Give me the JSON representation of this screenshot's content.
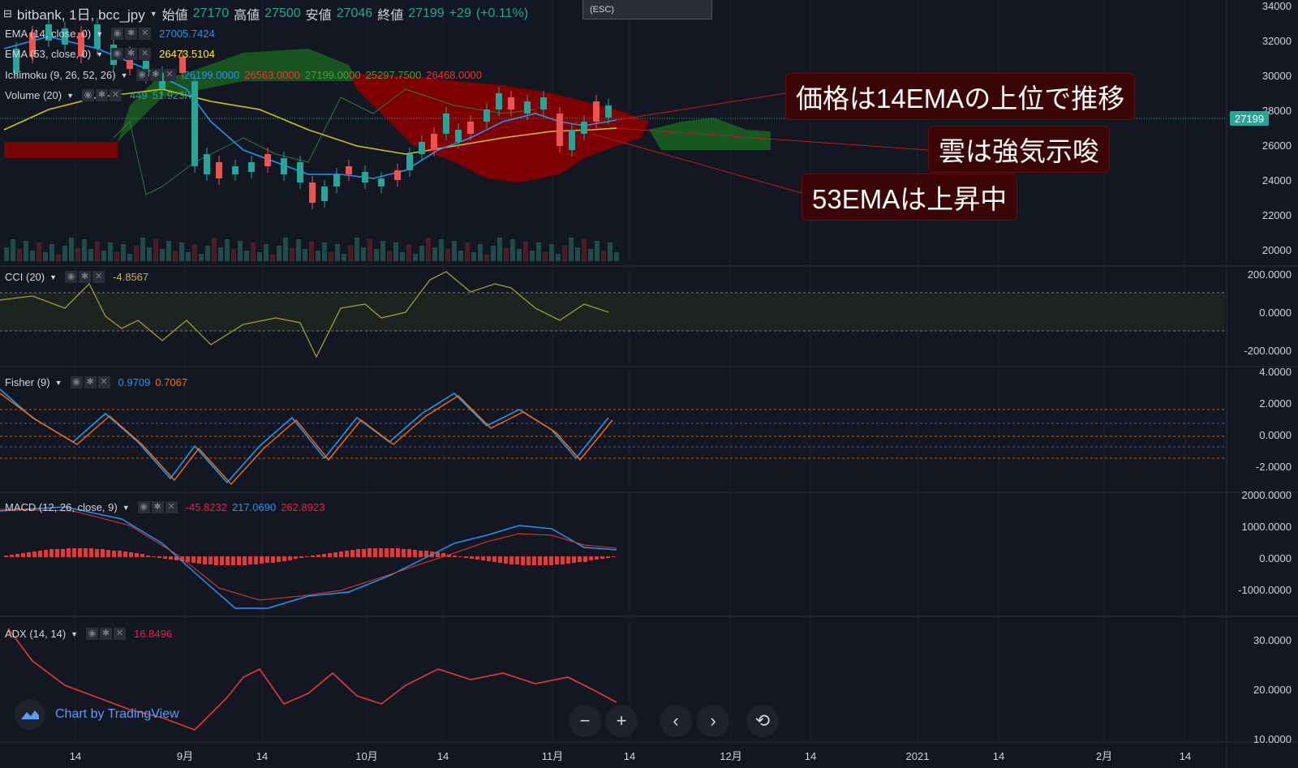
{
  "header": {
    "symbol": "bitbank, 1日, bcc_jpy",
    "open_label": "始値",
    "open": "27170",
    "high_label": "高値",
    "high": "27500",
    "low_label": "安値",
    "low": "27046",
    "close_label": "終値",
    "close": "27199",
    "change": "+29",
    "change_pct": "(+0.11%)",
    "esc_hint": "(ESC)"
  },
  "indicators": {
    "ema14": {
      "name": "EMA (14, close, 0)",
      "value": "27005.7424",
      "color": "#2196f3"
    },
    "ema53": {
      "name": "EMA (53, close, 0)",
      "value": "26473.5104",
      "color": "#ffeb3b"
    },
    "ichimoku": {
      "name": "Ichimoku (9, 26, 52, 26)",
      "v1": "26199.0000",
      "v2": "26563.0000",
      "v3": "27199.0000",
      "v4": "25297.7500",
      "v5": "26468.0000"
    },
    "volume": {
      "name": "Volume (20)",
      "v1": "449",
      "v2": "51.923K"
    },
    "cci": {
      "name": "CCI (20)",
      "value": "-4.8567"
    },
    "fisher": {
      "name": "Fisher (9)",
      "v1": "0.9709",
      "v2": "0.7067"
    },
    "macd": {
      "name": "MACD (12, 26, close, 9)",
      "v1": "-45.8232",
      "v2": "217.0690",
      "v3": "262.8923"
    },
    "adx": {
      "name": "ADX (14, 14)",
      "value": "16.8496"
    }
  },
  "annotations": {
    "a1": "価格は14EMAの上位で推移",
    "a2": "雲は強気示唆",
    "a3": "53EMAは上昇中"
  },
  "axes": {
    "price_ticks": [
      "34000",
      "32000",
      "30000",
      "28000",
      "26000",
      "24000",
      "22000",
      "20000"
    ],
    "last_price": "27199",
    "cci_ticks": [
      "200.0000",
      "0.0000",
      "-200.0000"
    ],
    "fisher_ticks": [
      "4.0000",
      "2.0000",
      "0.0000",
      "-2.0000"
    ],
    "macd_ticks": [
      "2000.0000",
      "1000.0000",
      "0.0000",
      "-1000.0000"
    ],
    "adx_ticks": [
      "30.0000",
      "20.0000",
      "10.0000"
    ],
    "time_labels": [
      "14",
      "9月",
      "14",
      "10月",
      "14",
      "11月",
      "14",
      "12月",
      "14",
      "2021",
      "14",
      "2月",
      "14"
    ]
  },
  "branding": {
    "label": "Chart by TradingView"
  },
  "controls": {
    "zoom_out": "−",
    "zoom_in": "+",
    "prev": "‹",
    "next": "›",
    "reset": "⟲"
  }
}
